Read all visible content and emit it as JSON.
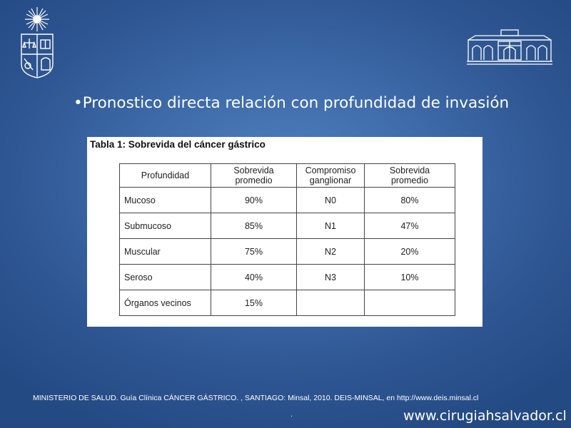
{
  "slide": {
    "bullet_marker": "•",
    "bullet_text": "Pronostico directa relación con profundidad de invasión",
    "citation": "MINISTERIO DE SALUD. Guía Clínica CÁNCER GÁSTRICO. , SANTIAGO: Minsal, 2010. DEIS-MINSAL, en http://www.deis.minsal.cl",
    "footer_dot": ".",
    "website": "www.cirugiahsalvador.cl"
  },
  "logos": {
    "left": "university-crest-icon",
    "right": "hospital-building-icon"
  },
  "table": {
    "title": "Tabla 1: Sobrevida del cáncer gástrico",
    "headers": [
      [
        "Profundidad"
      ],
      [
        "Sobrevida",
        "promedio"
      ],
      [
        "Compromiso",
        "ganglionar"
      ],
      [
        "Sobrevida",
        "promedio"
      ]
    ],
    "rows": [
      [
        "Mucoso",
        "90%",
        "N0",
        "80%"
      ],
      [
        "Submucoso",
        "85%",
        "N1",
        "47%"
      ],
      [
        "Muscular",
        "75%",
        "N2",
        "20%"
      ],
      [
        "Seroso",
        "40%",
        "N3",
        "10%"
      ],
      [
        "Órganos vecinos",
        "15%",
        "",
        ""
      ]
    ]
  },
  "colors": {
    "background": "#3d69a8",
    "text": "#ffffff",
    "table_border": "#444444"
  }
}
